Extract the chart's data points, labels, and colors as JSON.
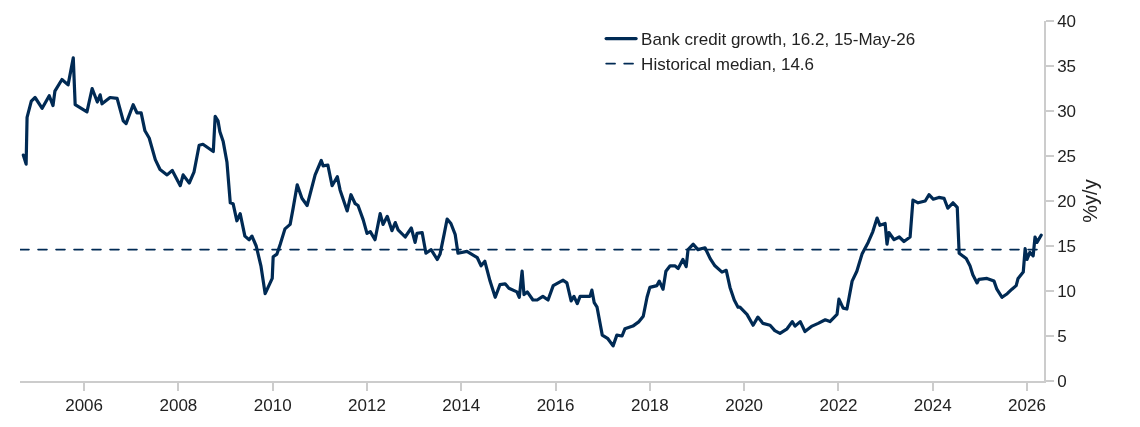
{
  "chart_data": {
    "type": "line",
    "ylabel": "%y/y",
    "xlim": [
      2004.64,
      2026.36
    ],
    "ylim": [
      0,
      40
    ],
    "xticks": [
      2006,
      2008,
      2010,
      2012,
      2014,
      2016,
      2018,
      2020,
      2022,
      2024,
      2026
    ],
    "yticks": [
      0,
      5,
      10,
      15,
      20,
      25,
      30,
      35,
      40
    ],
    "legend": "top right",
    "marker": "none",
    "line_style": "solid",
    "ref_lines": [
      {
        "axis": "y",
        "value": 14.6,
        "label": "Historical median, 14.6",
        "color": "#002a54",
        "line_style": "dashed"
      }
    ],
    "series": [
      {
        "name": "Bank credit growth, 16.2, 15-May-26",
        "color": "#002a54",
        "x": [
          2004.71,
          2004.77,
          2004.79,
          2004.88,
          2004.96,
          2005.11,
          2005.26,
          2005.34,
          2005.38,
          2005.53,
          2005.66,
          2005.77,
          2005.81,
          2006.06,
          2006.17,
          2006.28,
          2006.34,
          2006.38,
          2006.55,
          2006.7,
          2006.83,
          2006.89,
          2007.04,
          2007.12,
          2007.21,
          2007.29,
          2007.38,
          2007.51,
          2007.61,
          2007.76,
          2007.87,
          2008.04,
          2008.1,
          2008.23,
          2008.33,
          2008.44,
          2008.52,
          2008.74,
          2008.78,
          2008.84,
          2008.88,
          2008.95,
          2009.03,
          2009.1,
          2009.16,
          2009.24,
          2009.31,
          2009.41,
          2009.5,
          2009.56,
          2009.65,
          2009.75,
          2009.84,
          2009.99,
          2010.01,
          2010.09,
          2010.16,
          2010.26,
          2010.37,
          2010.43,
          2010.52,
          2010.62,
          2010.73,
          2010.9,
          2011.03,
          2011.07,
          2011.17,
          2011.26,
          2011.37,
          2011.43,
          2011.58,
          2011.66,
          2011.75,
          2011.81,
          2011.92,
          2012.0,
          2012.07,
          2012.17,
          2012.28,
          2012.34,
          2012.43,
          2012.53,
          2012.6,
          2012.66,
          2012.81,
          2012.94,
          2013.02,
          2013.06,
          2013.17,
          2013.25,
          2013.36,
          2013.49,
          2013.55,
          2013.64,
          2013.7,
          2013.78,
          2013.87,
          2013.93,
          2014.12,
          2014.34,
          2014.42,
          2014.5,
          2014.61,
          2014.72,
          2014.82,
          2014.93,
          2015.01,
          2015.18,
          2015.23,
          2015.29,
          2015.33,
          2015.4,
          2015.52,
          2015.61,
          2015.73,
          2015.84,
          2015.95,
          2016.16,
          2016.24,
          2016.33,
          2016.39,
          2016.46,
          2016.52,
          2016.73,
          2016.77,
          2016.82,
          2016.88,
          2016.99,
          2017.11,
          2017.22,
          2017.3,
          2017.41,
          2017.47,
          2017.64,
          2017.77,
          2017.86,
          2017.94,
          2018.0,
          2018.15,
          2018.2,
          2018.28,
          2018.34,
          2018.43,
          2018.53,
          2018.6,
          2018.7,
          2018.77,
          2018.81,
          2018.92,
          2019.02,
          2019.17,
          2019.28,
          2019.38,
          2019.53,
          2019.62,
          2019.7,
          2019.79,
          2019.87,
          2019.91,
          2020.06,
          2020.19,
          2020.29,
          2020.4,
          2020.55,
          2020.65,
          2020.76,
          2020.91,
          2021.02,
          2021.08,
          2021.19,
          2021.29,
          2021.44,
          2021.57,
          2021.72,
          2021.82,
          2021.97,
          2022.01,
          2022.1,
          2022.18,
          2022.29,
          2022.39,
          2022.5,
          2022.63,
          2022.73,
          2022.82,
          2022.88,
          2022.99,
          2023.03,
          2023.07,
          2023.18,
          2023.29,
          2023.39,
          2023.52,
          2023.58,
          2023.69,
          2023.84,
          2023.92,
          2024.01,
          2024.13,
          2024.24,
          2024.32,
          2024.43,
          2024.52,
          2024.56,
          2024.71,
          2024.79,
          2024.85,
          2024.94,
          2024.98,
          2025.15,
          2025.3,
          2025.36,
          2025.47,
          2025.58,
          2025.68,
          2025.77,
          2025.81,
          2025.92,
          2025.96,
          2026.0,
          2026.06,
          2026.13,
          2026.17,
          2026.21,
          2026.3
        ],
        "values": [
          25.1,
          24.1,
          29.3,
          31.1,
          31.5,
          30.3,
          31.7,
          30.6,
          32.2,
          33.5,
          32.9,
          35.9,
          30.7,
          29.9,
          32.5,
          31.0,
          31.8,
          30.8,
          31.5,
          31.4,
          28.9,
          28.6,
          30.7,
          29.8,
          29.8,
          27.8,
          27.0,
          24.6,
          23.5,
          22.9,
          23.4,
          21.7,
          22.9,
          22.0,
          23.2,
          26.2,
          26.3,
          25.5,
          29.4,
          28.9,
          27.7,
          26.6,
          24.3,
          19.8,
          19.7,
          17.8,
          18.6,
          16.1,
          15.7,
          16.1,
          15.0,
          12.8,
          9.7,
          11.4,
          13.8,
          14.1,
          15.2,
          16.9,
          17.4,
          19.1,
          21.8,
          20.3,
          19.5,
          22.9,
          24.5,
          23.9,
          24.0,
          21.7,
          22.7,
          21.2,
          18.9,
          20.7,
          19.7,
          19.5,
          17.9,
          16.4,
          16.6,
          15.7,
          18.6,
          17.4,
          18.3,
          16.7,
          17.6,
          16.8,
          16.0,
          17.0,
          15.4,
          16.4,
          16.5,
          14.2,
          14.6,
          13.5,
          14.1,
          16.4,
          18.0,
          17.5,
          16.3,
          14.2,
          14.4,
          13.7,
          12.8,
          13.3,
          11.1,
          9.3,
          10.7,
          10.8,
          10.3,
          9.9,
          9.3,
          12.2,
          9.6,
          9.9,
          9.0,
          9.0,
          9.4,
          9.0,
          10.6,
          11.2,
          10.9,
          8.9,
          9.4,
          8.6,
          9.4,
          9.4,
          10.1,
          8.7,
          8.2,
          5.1,
          4.7,
          3.9,
          5.1,
          5.0,
          5.8,
          6.1,
          6.6,
          7.2,
          9.3,
          10.4,
          10.6,
          11.1,
          10.2,
          12.2,
          12.8,
          12.8,
          12.5,
          13.5,
          12.7,
          14.6,
          15.2,
          14.6,
          14.8,
          13.6,
          12.8,
          12.1,
          12.3,
          10.4,
          9.0,
          8.2,
          8.2,
          7.4,
          6.2,
          7.1,
          6.4,
          6.2,
          5.6,
          5.3,
          5.8,
          6.6,
          6.1,
          6.6,
          5.5,
          6.1,
          6.4,
          6.8,
          6.6,
          7.4,
          9.1,
          8.1,
          8.0,
          11.1,
          12.2,
          14.1,
          15.4,
          16.6,
          18.1,
          17.3,
          17.5,
          15.2,
          16.5,
          15.7,
          16.0,
          15.5,
          16.0,
          20.1,
          19.8,
          20.0,
          20.7,
          20.2,
          20.4,
          20.3,
          19.2,
          19.8,
          19.3,
          14.2,
          13.6,
          12.8,
          11.8,
          10.9,
          11.3,
          11.4,
          11.1,
          10.2,
          9.3,
          9.7,
          10.2,
          10.6,
          11.4,
          12.1,
          14.7,
          13.5,
          14.3,
          13.9,
          16.0,
          15.4,
          16.2
        ]
      }
    ]
  }
}
